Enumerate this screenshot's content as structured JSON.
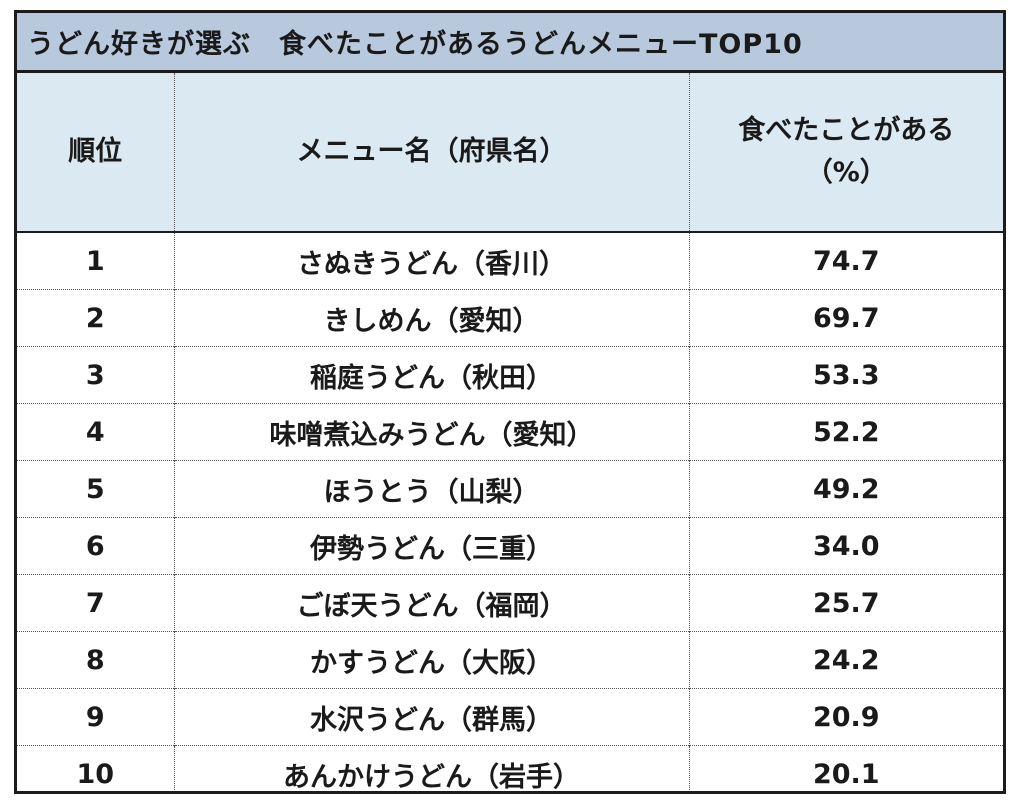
{
  "title": "うどん好きが選ぶ　食べたことがあるうどんメニューTOP10",
  "header": {
    "rank": "順位",
    "menu": "メニュー名（府県名）",
    "pct_line1": "食べたことがある",
    "pct_line2": "（%）"
  },
  "rows": [
    {
      "rank": "1",
      "menu": "さぬきうどん（香川）",
      "pct": "74.7"
    },
    {
      "rank": "2",
      "menu": "きしめん（愛知）",
      "pct": "69.7"
    },
    {
      "rank": "3",
      "menu": "稲庭うどん（秋田）",
      "pct": "53.3"
    },
    {
      "rank": "4",
      "menu": "味噌煮込みうどん（愛知）",
      "pct": "52.2"
    },
    {
      "rank": "5",
      "menu": "ほうとう（山梨）",
      "pct": "49.2"
    },
    {
      "rank": "6",
      "menu": "伊勢うどん（三重）",
      "pct": "34.0"
    },
    {
      "rank": "7",
      "menu": "ごぼ天うどん（福岡）",
      "pct": "25.7"
    },
    {
      "rank": "8",
      "menu": "かすうどん（大阪）",
      "pct": "24.2"
    },
    {
      "rank": "9",
      "menu": "水沢うどん（群馬）",
      "pct": "20.9"
    },
    {
      "rank": "10",
      "menu": "あんかけうどん（岩手）",
      "pct": "20.1"
    }
  ]
}
